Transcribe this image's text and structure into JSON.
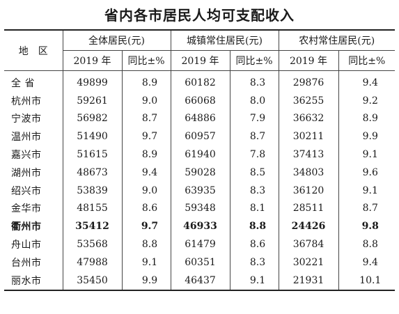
{
  "title": "省内各市居民人均可支配收入",
  "header": {
    "region": "地　区",
    "groups": [
      "全体居民(元)",
      "城镇常住居民(元)",
      "农村常住居民(元)"
    ],
    "sub": [
      "2019 年",
      "同比±%",
      "2019 年",
      "同比±%",
      "2019 年",
      "同比±%"
    ]
  },
  "rows": [
    {
      "name": "全 省",
      "v": [
        "49899",
        "8.9",
        "60182",
        "8.3",
        "29876",
        "9.4"
      ]
    },
    {
      "name": "杭州市",
      "v": [
        "59261",
        "9.0",
        "66068",
        "8.0",
        "36255",
        "9.2"
      ]
    },
    {
      "name": "宁波市",
      "v": [
        "56982",
        "8.7",
        "64886",
        "7.9",
        "36632",
        "8.9"
      ]
    },
    {
      "name": "温州市",
      "v": [
        "51490",
        "9.7",
        "60957",
        "8.7",
        "30211",
        "9.9"
      ]
    },
    {
      "name": "嘉兴市",
      "v": [
        "51615",
        "8.9",
        "61940",
        "7.8",
        "37413",
        "9.1"
      ]
    },
    {
      "name": "湖州市",
      "v": [
        "48673",
        "9.4",
        "59028",
        "8.5",
        "34803",
        "9.6"
      ]
    },
    {
      "name": "绍兴市",
      "v": [
        "53839",
        "9.0",
        "63935",
        "8.3",
        "36120",
        "9.1"
      ]
    },
    {
      "name": "金华市",
      "v": [
        "48155",
        "8.6",
        "59348",
        "8.1",
        "28511",
        "8.7"
      ]
    },
    {
      "name": "衢州市",
      "v": [
        "35412",
        "9.7",
        "46933",
        "8.8",
        "24426",
        "9.8"
      ]
    },
    {
      "name": "舟山市",
      "v": [
        "53568",
        "8.8",
        "61479",
        "8.6",
        "36784",
        "8.8"
      ]
    },
    {
      "name": "台州市",
      "v": [
        "47988",
        "9.1",
        "60351",
        "8.3",
        "30221",
        "9.4"
      ]
    },
    {
      "name": "丽水市",
      "v": [
        "35450",
        "9.9",
        "46437",
        "9.1",
        "21931",
        "10.1"
      ]
    }
  ]
}
